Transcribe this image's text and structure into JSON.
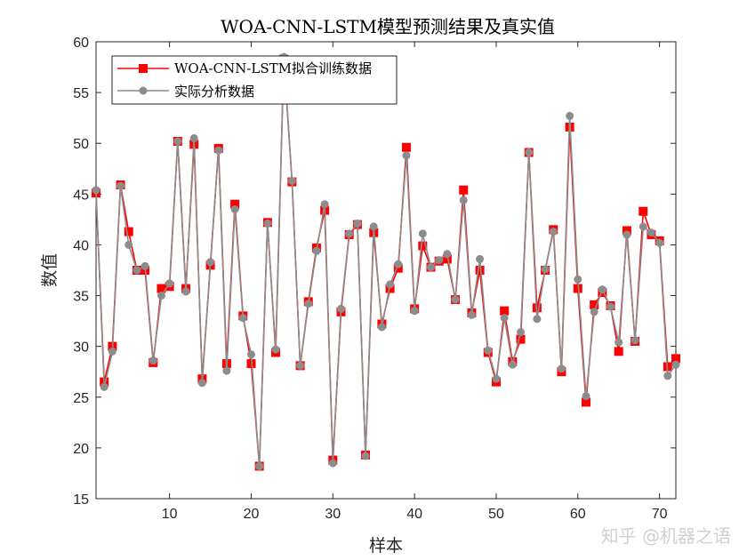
{
  "watermark": "知乎 @机器之语",
  "chart_data": {
    "type": "line",
    "title": "WOA-CNN-LSTM模型预测结果及真实值",
    "xlabel": "样本",
    "ylabel": "数值",
    "xlim": [
      1,
      72
    ],
    "ylim": [
      15,
      60
    ],
    "xticks": [
      10,
      20,
      30,
      40,
      50,
      60,
      70
    ],
    "yticks": [
      15,
      20,
      25,
      30,
      35,
      40,
      45,
      50,
      55,
      60
    ],
    "legend_position": "top-left",
    "grid": false,
    "x": [
      1,
      2,
      3,
      4,
      5,
      6,
      7,
      8,
      9,
      10,
      11,
      12,
      13,
      14,
      15,
      16,
      17,
      18,
      19,
      20,
      21,
      22,
      23,
      24,
      25,
      26,
      27,
      28,
      29,
      30,
      31,
      32,
      33,
      34,
      35,
      36,
      37,
      38,
      39,
      40,
      41,
      42,
      43,
      44,
      45,
      46,
      47,
      48,
      49,
      50,
      51,
      52,
      53,
      54,
      55,
      56,
      57,
      58,
      59,
      60,
      61,
      62,
      63,
      64,
      65,
      66,
      67,
      68,
      69,
      70,
      71,
      72
    ],
    "series": [
      {
        "name": "WOA-CNN-LSTM拟合训练数据",
        "color": "#ff0000",
        "marker": "square",
        "values": [
          45.1,
          26.5,
          30.0,
          45.9,
          41.3,
          37.5,
          37.5,
          28.4,
          35.7,
          35.9,
          50.2,
          35.7,
          49.9,
          26.8,
          38.0,
          49.5,
          28.3,
          44.0,
          33.0,
          28.3,
          18.2,
          42.2,
          29.4,
          58.3,
          46.2,
          28.1,
          34.4,
          39.7,
          43.4,
          18.8,
          33.4,
          41.0,
          42.0,
          19.3,
          41.2,
          32.2,
          35.7,
          37.7,
          49.6,
          33.7,
          39.9,
          37.8,
          38.4,
          38.6,
          34.6,
          45.4,
          33.3,
          37.5,
          29.4,
          26.5,
          33.5,
          28.5,
          30.7,
          49.1,
          33.8,
          37.5,
          41.5,
          27.5,
          51.6,
          35.7,
          24.5,
          34.1,
          35.3,
          34.0,
          29.5,
          41.4,
          30.5,
          43.3,
          41.0,
          40.4,
          28.0,
          28.8
        ]
      },
      {
        "name": "实际分析数据",
        "color": "#8c8c8c",
        "marker": "circle",
        "values": [
          45.4,
          26.0,
          29.5,
          45.8,
          40.0,
          37.5,
          37.9,
          28.6,
          35.0,
          36.2,
          50.2,
          35.4,
          50.5,
          26.4,
          38.3,
          49.3,
          27.6,
          43.5,
          32.8,
          29.2,
          18.2,
          42.1,
          29.7,
          58.5,
          46.3,
          28.1,
          34.2,
          39.4,
          44.0,
          18.5,
          33.7,
          41.1,
          42.1,
          19.2,
          41.8,
          31.9,
          36.1,
          38.1,
          48.8,
          33.5,
          41.1,
          37.8,
          38.5,
          39.1,
          34.6,
          44.4,
          33.1,
          38.6,
          29.6,
          26.8,
          32.8,
          28.2,
          31.4,
          49.1,
          32.7,
          37.6,
          41.3,
          27.8,
          52.7,
          36.6,
          25.1,
          33.4,
          35.6,
          33.9,
          30.4,
          41.0,
          30.6,
          41.8,
          41.2,
          40.2,
          27.1,
          28.2
        ]
      }
    ]
  }
}
